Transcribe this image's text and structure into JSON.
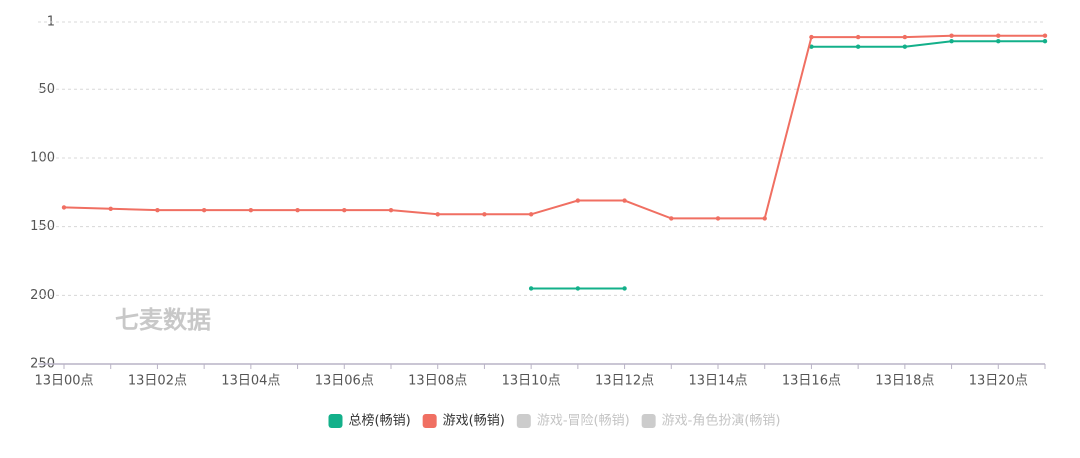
{
  "chart_data": {
    "type": "line",
    "watermark": "七麦数据",
    "categories": [
      "13日00点",
      null,
      "13日02点",
      null,
      "13日04点",
      null,
      "13日06点",
      null,
      "13日08点",
      null,
      "13日10点",
      null,
      "13日12点",
      null,
      "13日14点",
      null,
      "13日16点",
      null,
      "13日18点",
      null,
      "13日20点",
      null
    ],
    "series": [
      {
        "name": "总榜(畅销)",
        "color": "#13b08a",
        "values": [
          null,
          null,
          null,
          null,
          null,
          null,
          null,
          null,
          null,
          null,
          195,
          195,
          195,
          null,
          null,
          null,
          19,
          19,
          19,
          15,
          15,
          15
        ]
      },
      {
        "name": "游戏(畅销)",
        "color": "#f06f62",
        "values": [
          136,
          137,
          138,
          138,
          138,
          138,
          138,
          138,
          141,
          141,
          141,
          131,
          131,
          144,
          144,
          144,
          12,
          12,
          12,
          11,
          11,
          11
        ]
      },
      {
        "name": "游戏-冒险(畅销)",
        "color": "#cccccc",
        "hidden": true,
        "values": [
          null,
          null,
          null,
          null,
          null,
          null,
          null,
          null,
          null,
          null,
          null,
          null,
          null,
          null,
          null,
          null,
          null,
          null,
          null,
          null,
          null,
          null
        ]
      },
      {
        "name": "游戏-角色扮演(畅销)",
        "color": "#cccccc",
        "hidden": true,
        "values": [
          null,
          null,
          null,
          null,
          null,
          null,
          null,
          null,
          null,
          null,
          null,
          null,
          null,
          null,
          null,
          null,
          null,
          null,
          null,
          null,
          null,
          null
        ]
      }
    ],
    "ylim": [
      250,
      1
    ],
    "yticks": [
      1,
      50,
      100,
      150,
      200,
      250
    ],
    "grid": true
  }
}
